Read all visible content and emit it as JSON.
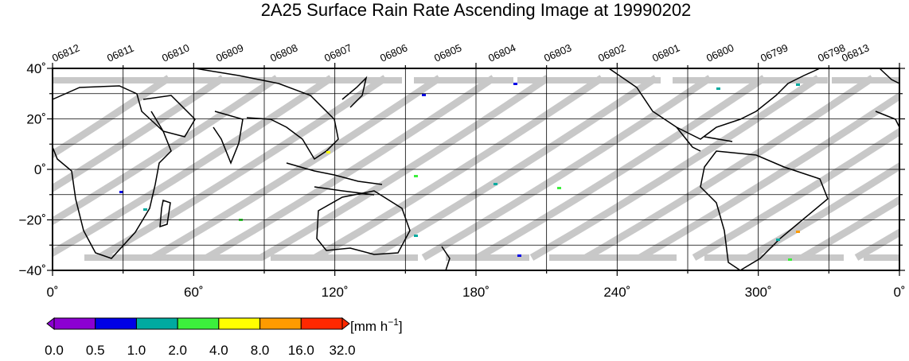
{
  "title": "2A25 Surface Rain Rate Ascending Image at 19990202",
  "orbits": [
    "06812",
    "06811",
    "06810",
    "06809",
    "06808",
    "06807",
    "06806",
    "06805",
    "06804",
    "06803",
    "06802",
    "06801",
    "06800",
    "06799",
    "06798",
    "06813"
  ],
  "lat_ticks": [
    {
      "value": 40,
      "label": "40˚"
    },
    {
      "value": 20,
      "label": "20˚"
    },
    {
      "value": 0,
      "label": "0˚"
    },
    {
      "value": -20,
      "label": "−20˚"
    },
    {
      "value": -40,
      "label": "−40˚"
    }
  ],
  "lon_ticks": [
    {
      "value": 0,
      "label": "0˚"
    },
    {
      "value": 60,
      "label": "60˚"
    },
    {
      "value": 120,
      "label": "120˚"
    },
    {
      "value": 180,
      "label": "180˚"
    },
    {
      "value": 240,
      "label": "240˚"
    },
    {
      "value": 300,
      "label": "300˚"
    },
    {
      "value": 360,
      "label": "0˚"
    }
  ],
  "map_extent": {
    "lon": [
      0,
      360
    ],
    "lat": [
      -40,
      40
    ]
  },
  "colorbar": {
    "unit_main": "[mm h",
    "unit_exp": "−1",
    "unit_close": "]",
    "labels": [
      "0.0",
      "0.5",
      "1.0",
      "2.0",
      "4.0",
      "8.0",
      "16.0",
      "32.0"
    ],
    "colors": [
      "#8c00d2",
      "#0000e6",
      "#00aaa0",
      "#3cf03c",
      "#ffff00",
      "#ff9b00",
      "#ff2800"
    ]
  },
  "colors": {
    "swath": "#c8c8c8",
    "coast": "#000000",
    "grid": "#000000"
  }
}
